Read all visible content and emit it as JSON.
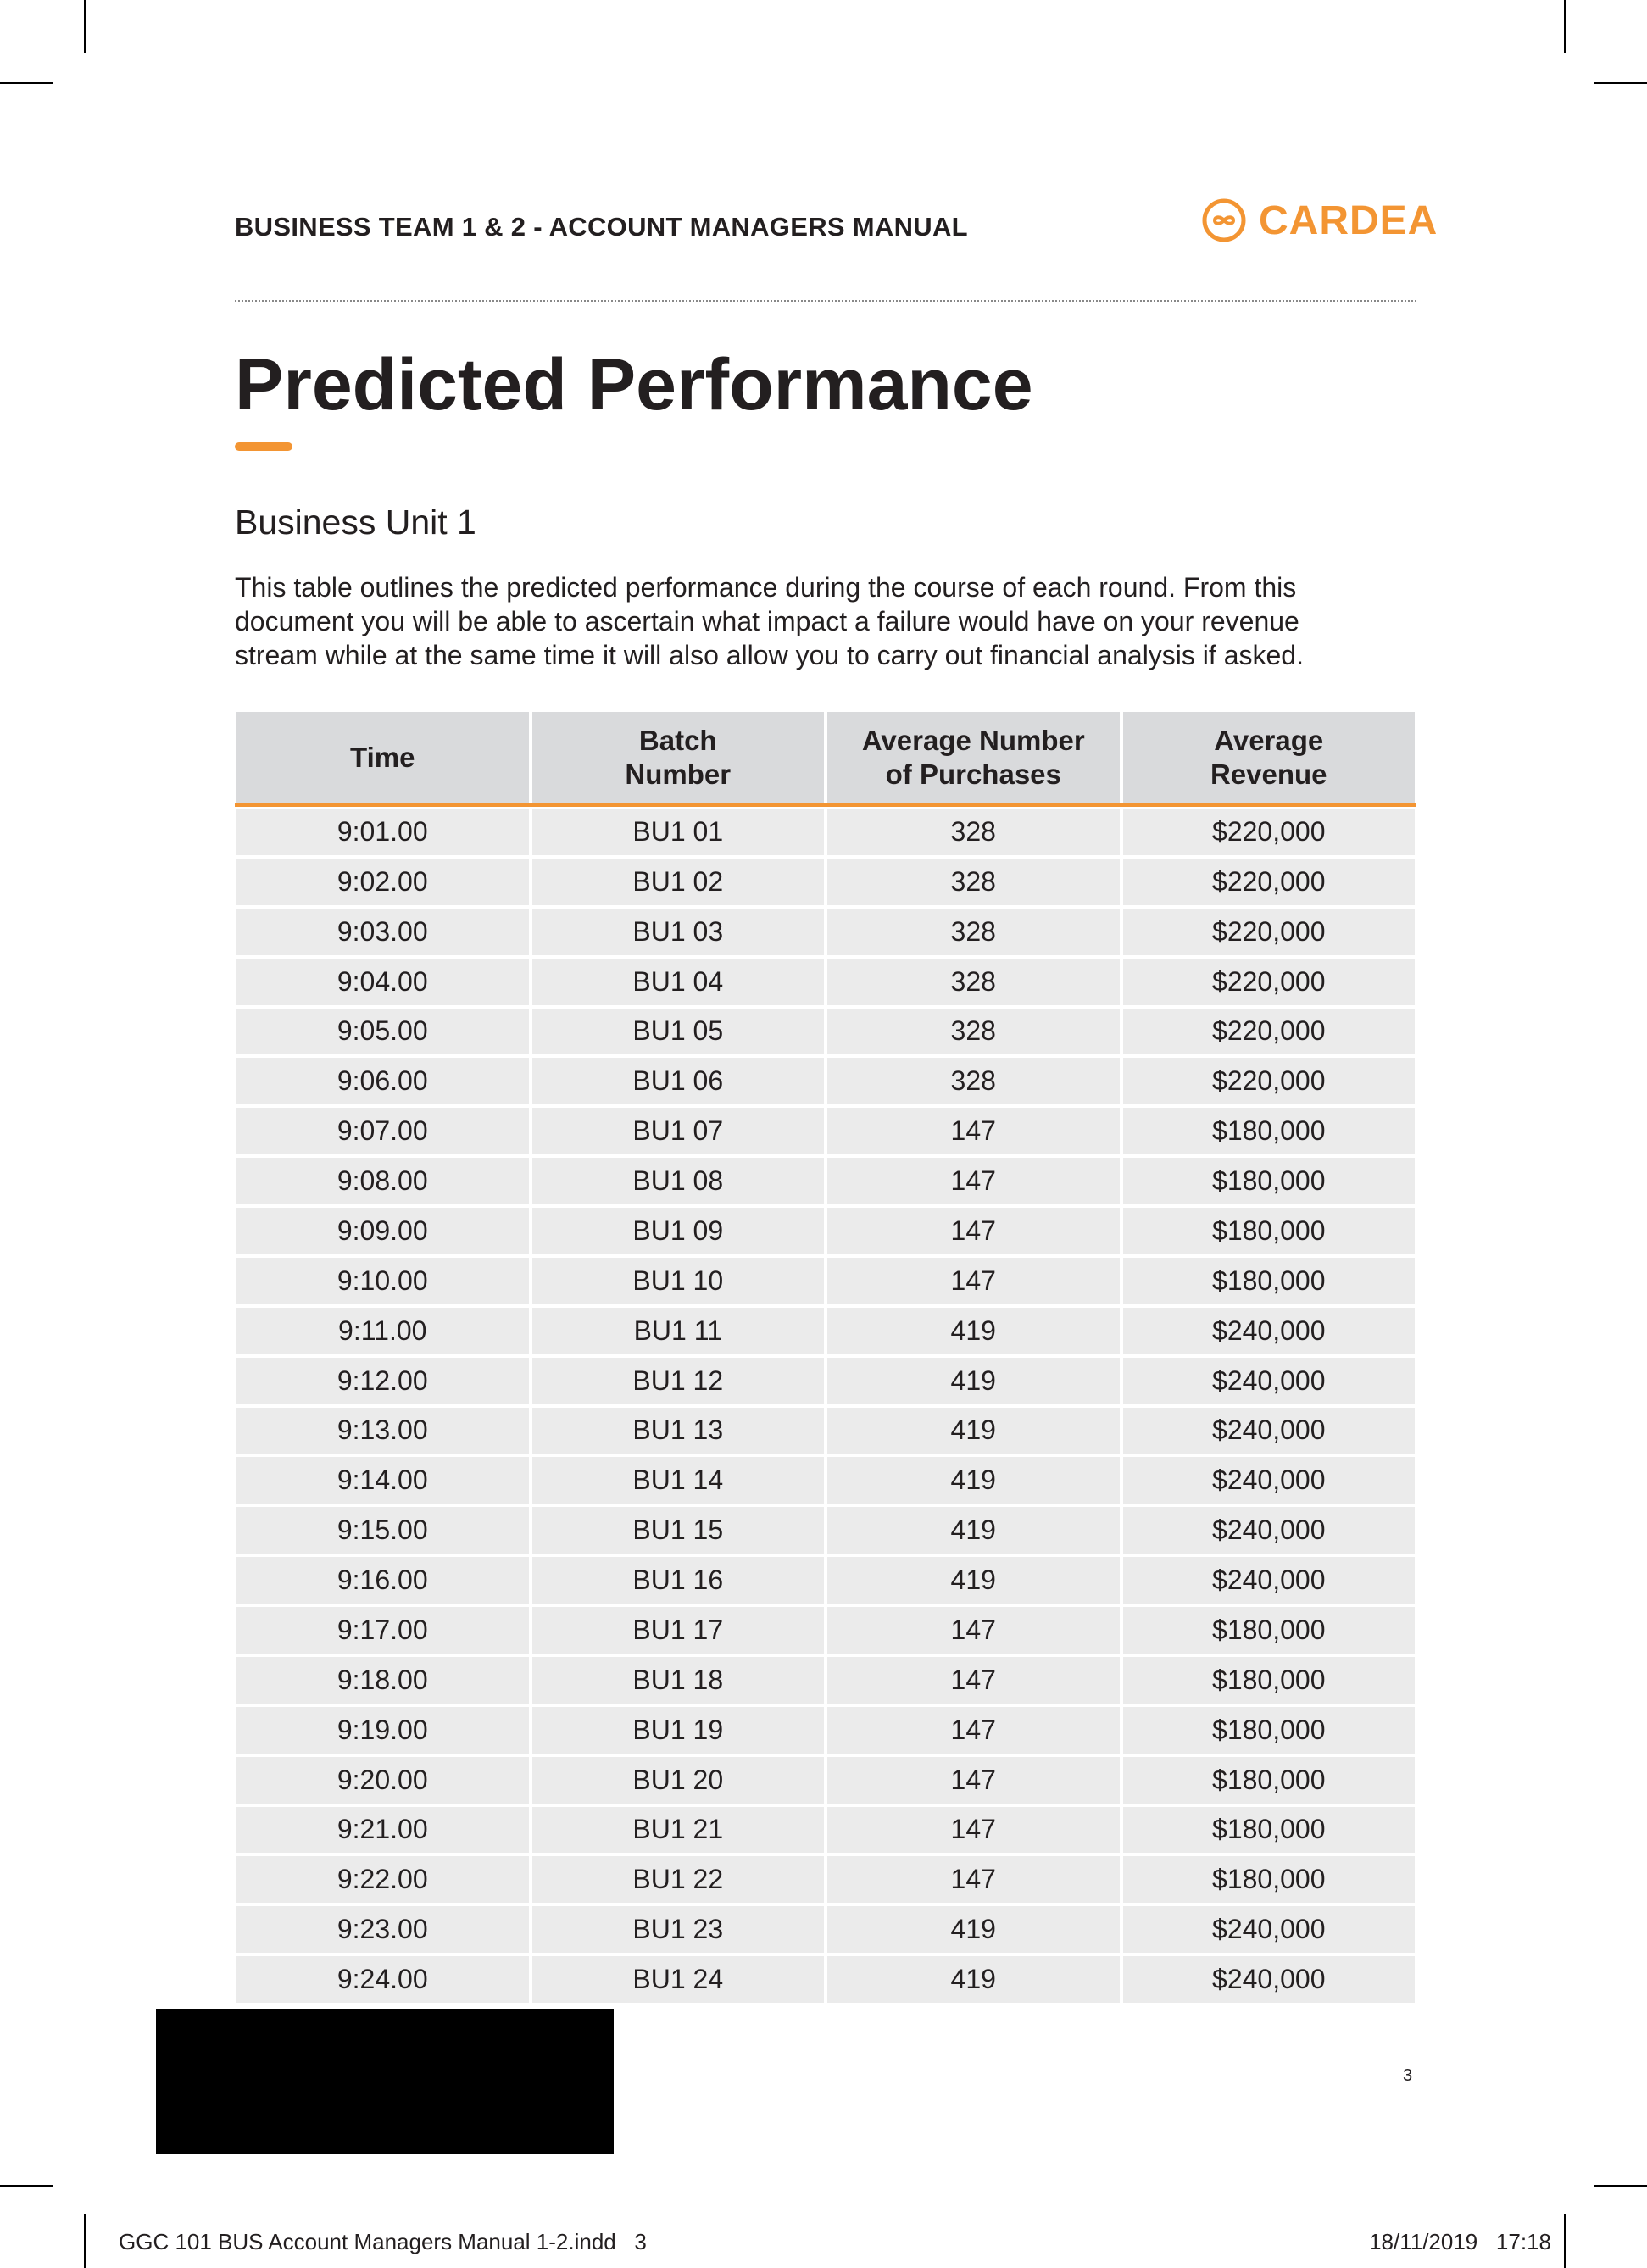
{
  "header": {
    "title": "BUSINESS TEAM 1 & 2 - ACCOUNT MANAGERS MANUAL",
    "logo": "CARDEA"
  },
  "title": "Predicted Performance",
  "section": "Business Unit 1",
  "paragraph": [
    "This table outlines the predicted performance during the course of each round. From this",
    "document you will be able to ascertain what impact a failure would have on your revenue",
    "stream while at the same time it will also allow you to carry out financial analysis if asked."
  ],
  "table": {
    "columns": [
      [
        "Time"
      ],
      [
        "Batch",
        "Number"
      ],
      [
        "Average Number",
        "of Purchases"
      ],
      [
        "Average",
        "Revenue"
      ]
    ],
    "rows": [
      [
        "9:01.00",
        "BU1 01",
        "328",
        "$220,000"
      ],
      [
        "9:02.00",
        "BU1 02",
        "328",
        "$220,000"
      ],
      [
        "9:03.00",
        "BU1 03",
        "328",
        "$220,000"
      ],
      [
        "9:04.00",
        "BU1 04",
        "328",
        "$220,000"
      ],
      [
        "9:05.00",
        "BU1 05",
        "328",
        "$220,000"
      ],
      [
        "9:06.00",
        "BU1 06",
        "328",
        "$220,000"
      ],
      [
        "9:07.00",
        "BU1 07",
        "147",
        "$180,000"
      ],
      [
        "9:08.00",
        "BU1 08",
        "147",
        "$180,000"
      ],
      [
        "9:09.00",
        "BU1 09",
        "147",
        "$180,000"
      ],
      [
        "9:10.00",
        "BU1 10",
        "147",
        "$180,000"
      ],
      [
        "9:11.00",
        "BU1 11",
        "419",
        "$240,000"
      ],
      [
        "9:12.00",
        "BU1 12",
        "419",
        "$240,000"
      ],
      [
        "9:13.00",
        "BU1 13",
        "419",
        "$240,000"
      ],
      [
        "9:14.00",
        "BU1 14",
        "419",
        "$240,000"
      ],
      [
        "9:15.00",
        "BU1 15",
        "419",
        "$240,000"
      ],
      [
        "9:16.00",
        "BU1 16",
        "419",
        "$240,000"
      ],
      [
        "9:17.00",
        "BU1 17",
        "147",
        "$180,000"
      ],
      [
        "9:18.00",
        "BU1 18",
        "147",
        "$180,000"
      ],
      [
        "9:19.00",
        "BU1 19",
        "147",
        "$180,000"
      ],
      [
        "9:20.00",
        "BU1 20",
        "147",
        "$180,000"
      ],
      [
        "9:21.00",
        "BU1 21",
        "147",
        "$180,000"
      ],
      [
        "9:22.00",
        "BU1 22",
        "147",
        "$180,000"
      ],
      [
        "9:23.00",
        "BU1 23",
        "419",
        "$240,000"
      ],
      [
        "9:24.00",
        "BU1 24",
        "419",
        "$240,000"
      ]
    ]
  },
  "page_number": "3",
  "footer": {
    "left": "GGC 101 BUS Account Managers Manual 1-2.indd   3",
    "right": "18/11/2019   17:18"
  }
}
